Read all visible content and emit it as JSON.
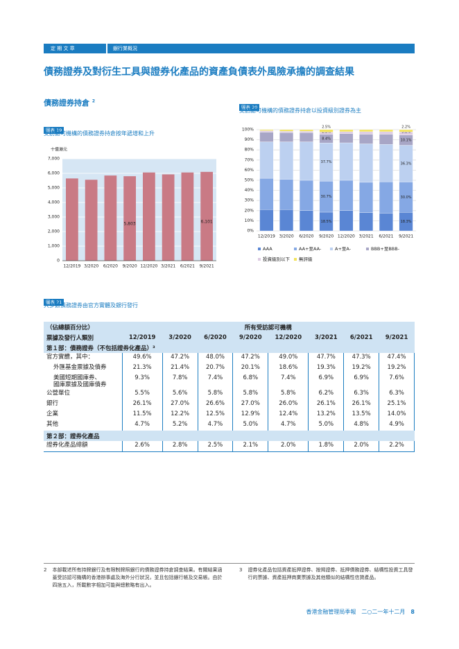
{
  "header": {
    "section": "定 期 文 章",
    "subsection": "銀行業概況"
  },
  "title": "債務證券及對衍生工具與證券化產品的資產負債表外風險承擔的調查結果",
  "subtitle": "債務證券持倉",
  "subtitle_note": "2",
  "chart_data": [
    {
      "type": "bar",
      "label": "圖表 19",
      "title": "受訪認可機構的債務證券持倉按年遞增和上升",
      "unit": "十億港元",
      "categories": [
        "12/2019",
        "3/2020",
        "6/2020",
        "9/2020",
        "12/2020",
        "3/2021",
        "6/2021",
        "9/2021"
      ],
      "values": [
        5650,
        5560,
        5850,
        5803,
        6060,
        5930,
        6060,
        6101
      ],
      "value_labels": [
        null,
        null,
        null,
        "5,803",
        null,
        null,
        null,
        "6,101"
      ],
      "color": "#c97a85",
      "ylim": [
        0,
        7000
      ],
      "yticks": [
        0,
        {
          "value": 1000,
          "label": "1,000"
        },
        {
          "value": 2000,
          "label": "2,000"
        },
        {
          "value": 3000,
          "label": "3,000"
        },
        {
          "value": 4000,
          "label": "4,000"
        },
        {
          "value": 5000,
          "label": "5,000"
        },
        {
          "value": 6000,
          "label": "6,000"
        },
        {
          "value": 7000,
          "label": "7,000"
        }
      ],
      "grid": true
    },
    {
      "type": "stacked_bar",
      "label": "圖表 20",
      "title": "受訪認可機構的債務證券持倉以投資級別證券為主",
      "categories": [
        "12/2019",
        "3/2020",
        "6/2020",
        "9/2020",
        "12/2020",
        "3/2021",
        "6/2021",
        "9/2021"
      ],
      "series": [
        {
          "name": "AAA",
          "color": "#5a86d4",
          "values": [
            21,
            21,
            20,
            18.5,
            20,
            18,
            17.5,
            18.3
          ],
          "value_labels": [
            null,
            null,
            null,
            "18.5%",
            null,
            null,
            null,
            "18.3%"
          ]
        },
        {
          "name": "AA+至AA-",
          "color": "#85a8e4",
          "values": [
            31,
            30,
            30,
            30.7,
            30,
            30,
            31,
            30.0
          ],
          "value_labels": [
            null,
            null,
            null,
            "30.7%",
            null,
            null,
            null,
            "30.0%"
          ]
        },
        {
          "name": "A+至A-",
          "color": "#bcd0f0",
          "values": [
            36,
            37,
            38,
            37.7,
            37,
            38,
            37,
            36.3
          ],
          "value_labels": [
            null,
            null,
            null,
            "37.7%",
            null,
            null,
            null,
            "36.3%"
          ]
        },
        {
          "name": "BBB+至BBB-",
          "color": "#a8a6c6",
          "values": [
            9.5,
            9,
            9,
            8.4,
            9,
            9.5,
            10,
            10.1
          ],
          "value_labels": [
            null,
            null,
            null,
            "8.4%",
            null,
            null,
            null,
            "10.1%"
          ]
        },
        {
          "name": "投資級別以下",
          "color": "#ddcbe2",
          "values": [
            1.5,
            1.5,
            1.5,
            2.3,
            2,
            2.5,
            2.5,
            3.1
          ],
          "value_labels": [
            null,
            null,
            null,
            "2.3%",
            null,
            null,
            null,
            "3.1%"
          ]
        },
        {
          "name": "無評級",
          "color": "#f2e35c",
          "values": [
            1,
            1.5,
            1.5,
            2.5,
            2,
            2,
            2,
            2.2
          ],
          "value_labels": [
            null,
            null,
            null,
            "2.5%",
            null,
            null,
            null,
            "2.2%"
          ]
        }
      ],
      "ylim": [
        0,
        100
      ],
      "yticks": [
        {
          "value": 0,
          "label": "0%"
        },
        {
          "value": 10,
          "label": "10%"
        },
        {
          "value": 20,
          "label": "20%"
        },
        {
          "value": 30,
          "label": "30%"
        },
        {
          "value": 40,
          "label": "40%"
        },
        {
          "value": 50,
          "label": "50%"
        },
        {
          "value": 60,
          "label": "60%"
        },
        {
          "value": 70,
          "label": "70%"
        },
        {
          "value": 80,
          "label": "80%"
        },
        {
          "value": 90,
          "label": "90%"
        },
        {
          "value": 100,
          "label": "100%"
        }
      ],
      "grid": true
    }
  ],
  "table": {
    "label": "圖表 21",
    "title": "大多數債務證券由官方實體及銀行發行",
    "unit": "（佔總額百分比）",
    "group_header": "所有受訪認可機構",
    "row_header": "票據及發行人類別",
    "columns": [
      "12/2019",
      "3/2020",
      "6/2020",
      "9/2020",
      "12/2020",
      "3/2021",
      "6/2021",
      "9/2021"
    ],
    "sections": [
      {
        "title": "第１部：債務證券（不包括證券化產品）³",
        "rows": [
          {
            "label": "官方實體，其中：",
            "cells": [
              "49.6%",
              "47.2%",
              "48.0%",
              "47.2%",
              "49.0%",
              "47.7%",
              "47.3%",
              "47.4%"
            ]
          },
          {
            "label": "外匯基金票據及債券",
            "cells": [
              "21.3%",
              "21.4%",
              "20.7%",
              "20.1%",
              "18.6%",
              "19.3%",
              "19.2%",
              "19.2%"
            ]
          },
          {
            "label": "美國短期國庫券、\n國庫票據及國庫債券",
            "cells": [
              "9.3%",
              "7.8%",
              "7.4%",
              "6.8%",
              "7.4%",
              "6.9%",
              "6.9%",
              "7.6%"
            ]
          },
          {
            "label": "公營單位",
            "cells": [
              "5.5%",
              "5.6%",
              "5.8%",
              "5.8%",
              "5.8%",
              "6.2%",
              "6.3%",
              "6.3%"
            ]
          },
          {
            "label": "銀行",
            "cells": [
              "26.1%",
              "27.0%",
              "26.6%",
              "27.0%",
              "26.0%",
              "26.1%",
              "26.1%",
              "25.1%"
            ]
          },
          {
            "label": "企業",
            "cells": [
              "11.5%",
              "12.2%",
              "12.5%",
              "12.9%",
              "12.4%",
              "13.2%",
              "13.5%",
              "14.0%"
            ]
          },
          {
            "label": "其他",
            "cells": [
              "4.7%",
              "5.2%",
              "4.7%",
              "5.0%",
              "4.7%",
              "5.0%",
              "4.8%",
              "4.9%"
            ]
          }
        ]
      },
      {
        "title": "第２部：證券化產品",
        "rows": [
          {
            "label": "證券化產品總額",
            "cells": [
              "2.6%",
              "2.8%",
              "2.5%",
              "2.1%",
              "2.0%",
              "1.8%",
              "2.0%",
              "2.2%"
            ]
          }
        ]
      }
    ]
  },
  "footnotes": [
    {
      "mark": "2",
      "text": "本部載述所有持牌銀行及有限制牌照銀行的債務證券持倉調查結果。有關結果涵蓋受訪認可機構的香港辦事處及海外分行狀況，並且包括銀行帳及交易帳。由於四捨五入，所載數字相加可能與總數略有出入。"
    },
    {
      "mark": "3",
      "text": "證券化產品包括資產抵押證券、按揭證券、抵押債務證券、結構性投資工具發行的票據、資產抵押商業票據及其他類似的結構性信貸產品。"
    }
  ],
  "footer": {
    "publication": "香港金融管理局季報　二○二一年十二月",
    "page": "8"
  }
}
